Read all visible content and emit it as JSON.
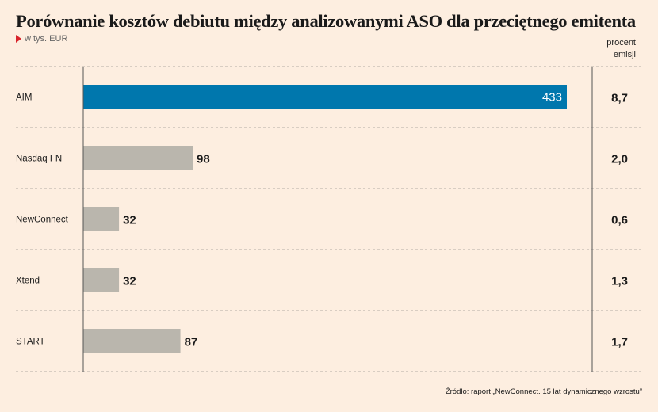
{
  "title": "Porównanie kosztów debiutu między analizowanymi ASO dla przeciętnego emitenta",
  "unit": "w tys. EUR",
  "percent_header": [
    "procent",
    "emisji"
  ],
  "source": "Źródło: raport „NewConnect. 15 lat dynamicznego wzrostu”",
  "colors": {
    "highlight": "#0077ad",
    "default": "#bab6ad",
    "background": "#fdeee0",
    "marker": "#d8232a"
  },
  "chart_data": {
    "type": "bar",
    "orientation": "horizontal",
    "title": "Porównanie kosztów debiutu między analizowanymi ASO dla przeciętnego emitenta",
    "categories": [
      "AIM",
      "Nasdaq FN",
      "NewConnect",
      "Xtend",
      "START"
    ],
    "values": [
      433,
      98,
      32,
      32,
      87
    ],
    "value_labels": [
      "433",
      "98",
      "32",
      "32",
      "87"
    ],
    "percent_of_issue": [
      "8,7",
      "2,0",
      "0,6",
      "1,3",
      "1,7"
    ],
    "highlight_index": 0,
    "xlim": [
      0,
      433
    ],
    "grid": false
  }
}
